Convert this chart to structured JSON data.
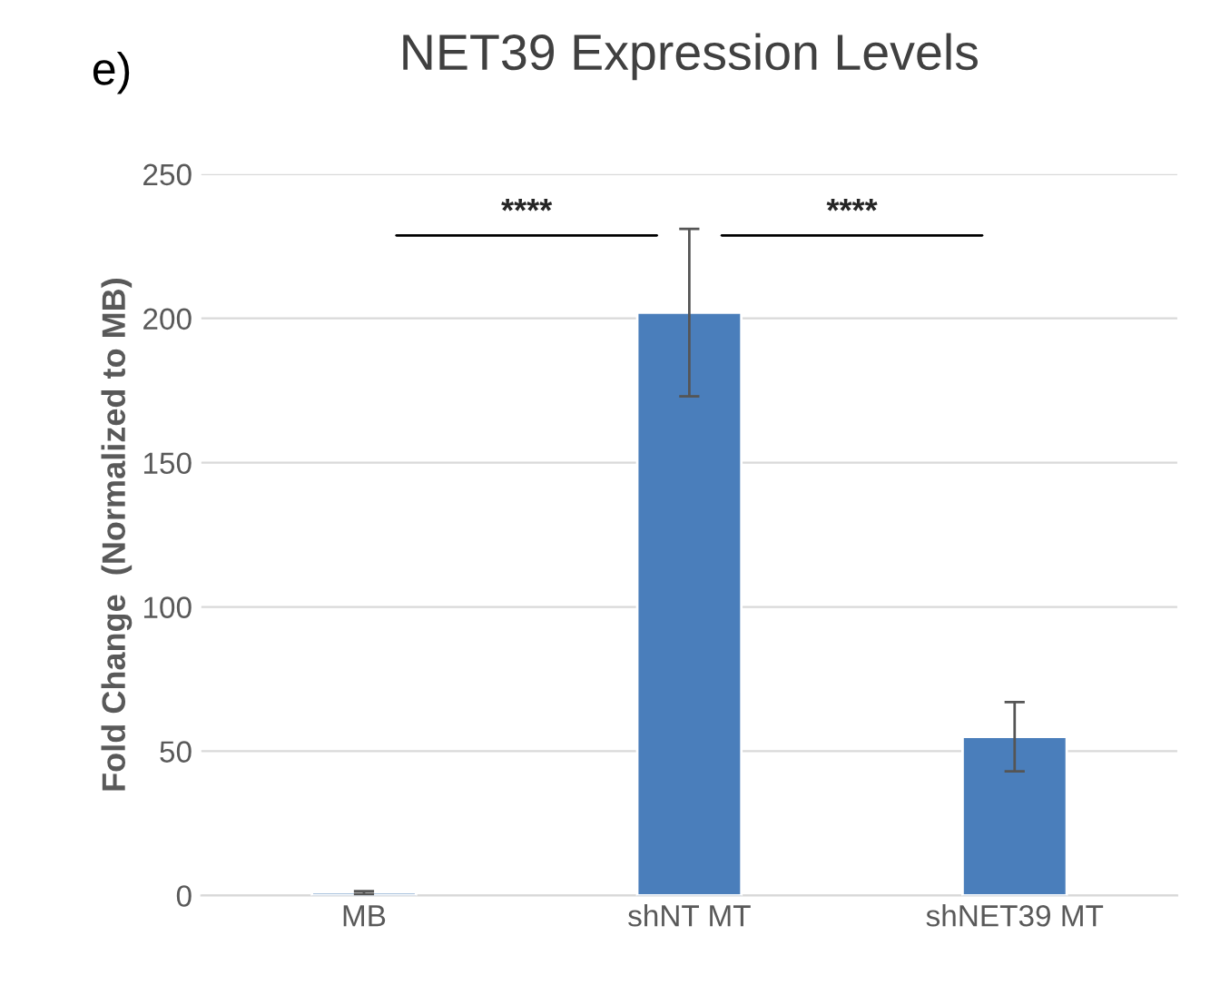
{
  "chart_data": {
    "type": "bar",
    "title": "NET39 Expression Levels",
    "ylabel": "Fold Change  (Normalized to MB)",
    "categories": [
      "MB",
      "shNT MT",
      "shNET39 MT"
    ],
    "values": [
      1,
      202,
      55
    ],
    "errors": [
      0.5,
      29,
      12
    ],
    "color": "#4a7ebb",
    "ylim": [
      0,
      250
    ],
    "yticks": [
      0,
      50,
      100,
      150,
      200,
      250
    ],
    "grid": "y",
    "legend": false,
    "annotations": [
      "e)",
      "****",
      "****"
    ]
  }
}
